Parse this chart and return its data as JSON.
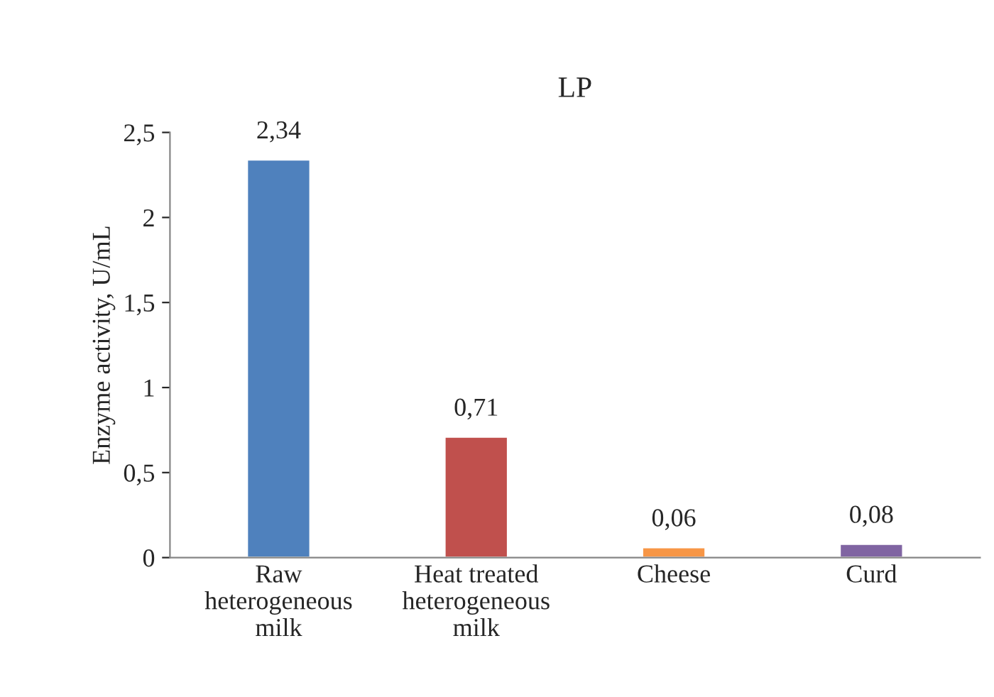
{
  "chart_data": {
    "type": "bar",
    "title": "LP",
    "ylabel": "Enzyme activity, U/mL",
    "categories": [
      "Raw heterogeneous milk",
      "Heat treated heterogeneous milk",
      "Cheese",
      "Curd"
    ],
    "values": [
      2.34,
      0.71,
      0.06,
      0.08
    ],
    "colors": [
      "#4f81bd",
      "#c0504d",
      "#f79646",
      "#8064a2"
    ],
    "value_labels": [
      "2,34",
      "0,71",
      "0,06",
      "0,08"
    ],
    "ylim": [
      0,
      2.5
    ],
    "yticks": [
      0,
      {
        "value": 0.5,
        "label": "0,5"
      },
      1,
      {
        "value": 1.5,
        "label": "1,5"
      },
      2,
      {
        "value": 2.5,
        "label": "2,5"
      }
    ],
    "grid": false,
    "legend": false
  }
}
